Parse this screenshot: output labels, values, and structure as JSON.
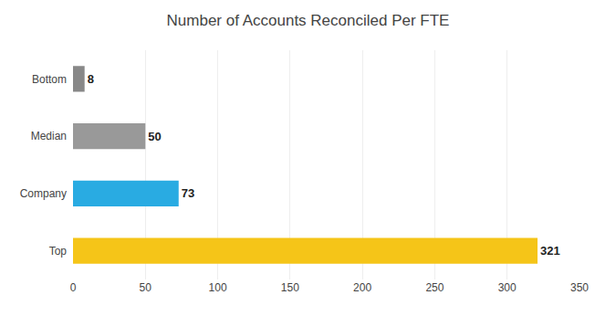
{
  "chart_data": {
    "type": "bar",
    "orientation": "horizontal",
    "title": "Number of Accounts Reconciled Per FTE",
    "categories": [
      "Top",
      "Company",
      "Median",
      "Bottom"
    ],
    "values": [
      321,
      73,
      50,
      8
    ],
    "colors": [
      "#F5C518",
      "#29ABE2",
      "#999999",
      "#888888"
    ],
    "xlim": [
      0,
      350
    ],
    "xticks": [
      0,
      50,
      100,
      150,
      200,
      250,
      300,
      350
    ],
    "grid": true,
    "data_labels": true
  }
}
